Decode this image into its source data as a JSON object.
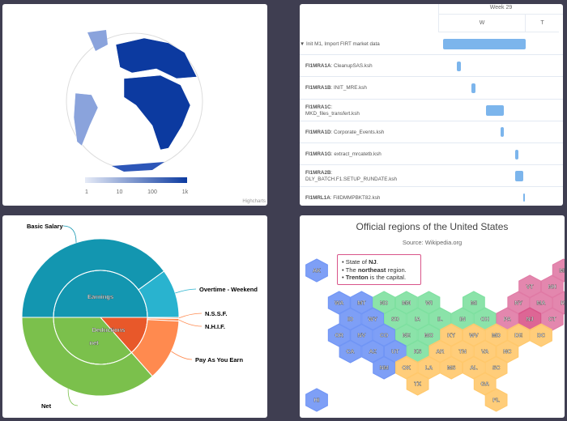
{
  "map_panel": {
    "credit": "Highcharts",
    "legend_ticks": [
      "1",
      "10",
      "100",
      "1k"
    ],
    "colors": {
      "ocean": "#ffffff",
      "land_high": "#0c3aa0",
      "land_mid": "#3f67c2",
      "land_low": "#8aa3dc",
      "edge": "#d8d8d8"
    }
  },
  "gantt": {
    "week_label": "Week 29",
    "days": [
      "W",
      "T"
    ],
    "rows": [
      {
        "code": "",
        "name": "Init M1, Import FIRT market data",
        "start": 1.3,
        "end": 24.2,
        "group": true
      },
      {
        "code": "FI1MRA1A",
        "name": "CleanupSAS.ksh",
        "start": 5.2,
        "end": 6.3
      },
      {
        "code": "FI1MRA1B",
        "name": "INIT_MRE.ksh",
        "start": 9.2,
        "end": 10.3
      },
      {
        "code": "FI1MRA1C",
        "name": "MKD_files_transfert.ksh",
        "start": 13.2,
        "end": 18.2,
        "wrap": true
      },
      {
        "code": "FI1MRA1D",
        "name": "Corporate_Events.ksh",
        "start": 17.2,
        "end": 18.2
      },
      {
        "code": "FI1MRA1G",
        "name": "extract_mrcatetb.ksh",
        "start": 21.2,
        "end": 22.2
      },
      {
        "code": "FI1MRA2B",
        "name": "DLY_BATCH.F1.SETUP_RUNDATE.ksh",
        "start": 21.2,
        "end": 23.5,
        "wrap": true
      },
      {
        "code": "FI1MRL1A",
        "name": "FillDMMPBKT82.ksh",
        "start": 23.5,
        "end": 23.9
      }
    ],
    "bar_color": "#7cb5ec"
  },
  "chart_data": {
    "type": "pie",
    "subtype": "sunburst",
    "inner": [
      {
        "name": "Earnings",
        "value": 100,
        "color": "#1396b0"
      },
      {
        "name": "Deductions",
        "value": 27,
        "color": "#e8582a"
      },
      {
        "name": "net",
        "value": 73,
        "color": "#7bc04c"
      }
    ],
    "outer": [
      {
        "name": "Basic Salary",
        "parent": "Earnings",
        "value": 80,
        "color": "#1396b0"
      },
      {
        "name": "Overtime - Weekend",
        "parent": "Earnings",
        "value": 20,
        "color": "#29b3cf"
      },
      {
        "name": "N.S.S.F.",
        "parent": "Deductions",
        "value": 0.5,
        "color": "#ff8a4f"
      },
      {
        "name": "N.H.I.F.",
        "parent": "Deductions",
        "value": 1,
        "color": "#ff8a4f"
      },
      {
        "name": "Pay As You Earn",
        "parent": "Deductions",
        "value": 25.5,
        "color": "#ff8a4f"
      },
      {
        "name": "Net",
        "parent": "net",
        "value": 73,
        "color": "#7bc04c"
      }
    ]
  },
  "hexmap": {
    "title": "Official regions of the United States",
    "subtitle": "Source: Wikipedia.org",
    "colors": {
      "west": "#7095f5",
      "midwest": "#7ee0a0",
      "south": "#ffc86c",
      "northeast": "#e07aa5",
      "hover": "#d9558a"
    },
    "states": [
      [
        "AK",
        0,
        -2,
        "west"
      ],
      [
        "ME",
        11,
        -2,
        "northeast"
      ],
      [
        "VT",
        9,
        -1,
        "northeast"
      ],
      [
        "NH",
        10,
        -1,
        "northeast"
      ],
      [
        "WA",
        1,
        0,
        "west"
      ],
      [
        "MT",
        2,
        0,
        "west"
      ],
      [
        "ND",
        3,
        0,
        "midwest"
      ],
      [
        "MN",
        4,
        0,
        "midwest"
      ],
      [
        "WI",
        5,
        0,
        "midwest"
      ],
      [
        "MI",
        7,
        0,
        "midwest"
      ],
      [
        "NY",
        9,
        0,
        "northeast"
      ],
      [
        "MA",
        10,
        0,
        "northeast"
      ],
      [
        "RI",
        11,
        0,
        "northeast"
      ],
      [
        "ID",
        1,
        1,
        "west"
      ],
      [
        "WY",
        2,
        1,
        "west"
      ],
      [
        "SD",
        3,
        1,
        "midwest"
      ],
      [
        "IA",
        4,
        1,
        "midwest"
      ],
      [
        "IL",
        5,
        1,
        "midwest"
      ],
      [
        "IN",
        6,
        1,
        "midwest"
      ],
      [
        "OH",
        7,
        1,
        "midwest"
      ],
      [
        "PA",
        8,
        1,
        "northeast"
      ],
      [
        "NJ",
        9,
        1,
        "northeast"
      ],
      [
        "CT",
        10,
        1,
        "northeast"
      ],
      [
        "OR",
        1,
        2,
        "west"
      ],
      [
        "NV",
        2,
        2,
        "west"
      ],
      [
        "CO",
        3,
        2,
        "west"
      ],
      [
        "NE",
        4,
        2,
        "midwest"
      ],
      [
        "MO",
        5,
        2,
        "midwest"
      ],
      [
        "KY",
        6,
        2,
        "south"
      ],
      [
        "WV",
        7,
        2,
        "south"
      ],
      [
        "MD",
        8,
        2,
        "south"
      ],
      [
        "DE",
        9,
        2,
        "south"
      ],
      [
        "DC",
        10,
        2,
        "south"
      ],
      [
        "CA",
        1,
        3,
        "west"
      ],
      [
        "AZ",
        2,
        3,
        "west"
      ],
      [
        "UT",
        3,
        3,
        "west"
      ],
      [
        "KS",
        4,
        3,
        "midwest"
      ],
      [
        "AR",
        5,
        3,
        "south"
      ],
      [
        "TN",
        6,
        3,
        "south"
      ],
      [
        "VA",
        7,
        3,
        "south"
      ],
      [
        "NC",
        8,
        3,
        "south"
      ],
      [
        "NM",
        3,
        4,
        "west"
      ],
      [
        "OK",
        4,
        4,
        "south"
      ],
      [
        "LA",
        5,
        4,
        "south"
      ],
      [
        "MS",
        6,
        4,
        "south"
      ],
      [
        "AL",
        7,
        4,
        "south"
      ],
      [
        "SC",
        8,
        4,
        "south"
      ],
      [
        "TX",
        4,
        5,
        "south"
      ],
      [
        "GA",
        7,
        5,
        "south"
      ],
      [
        "HI",
        0,
        6,
        "west"
      ],
      [
        "FL",
        8,
        6,
        "south"
      ]
    ],
    "tooltip": {
      "l1a": "State of ",
      "l1b": "NJ",
      "l1c": ".",
      "l2a": "The ",
      "l2b": "northeast",
      "l2c": " region.",
      "l3a": "Trenton",
      "l3b": " is the capital."
    }
  }
}
